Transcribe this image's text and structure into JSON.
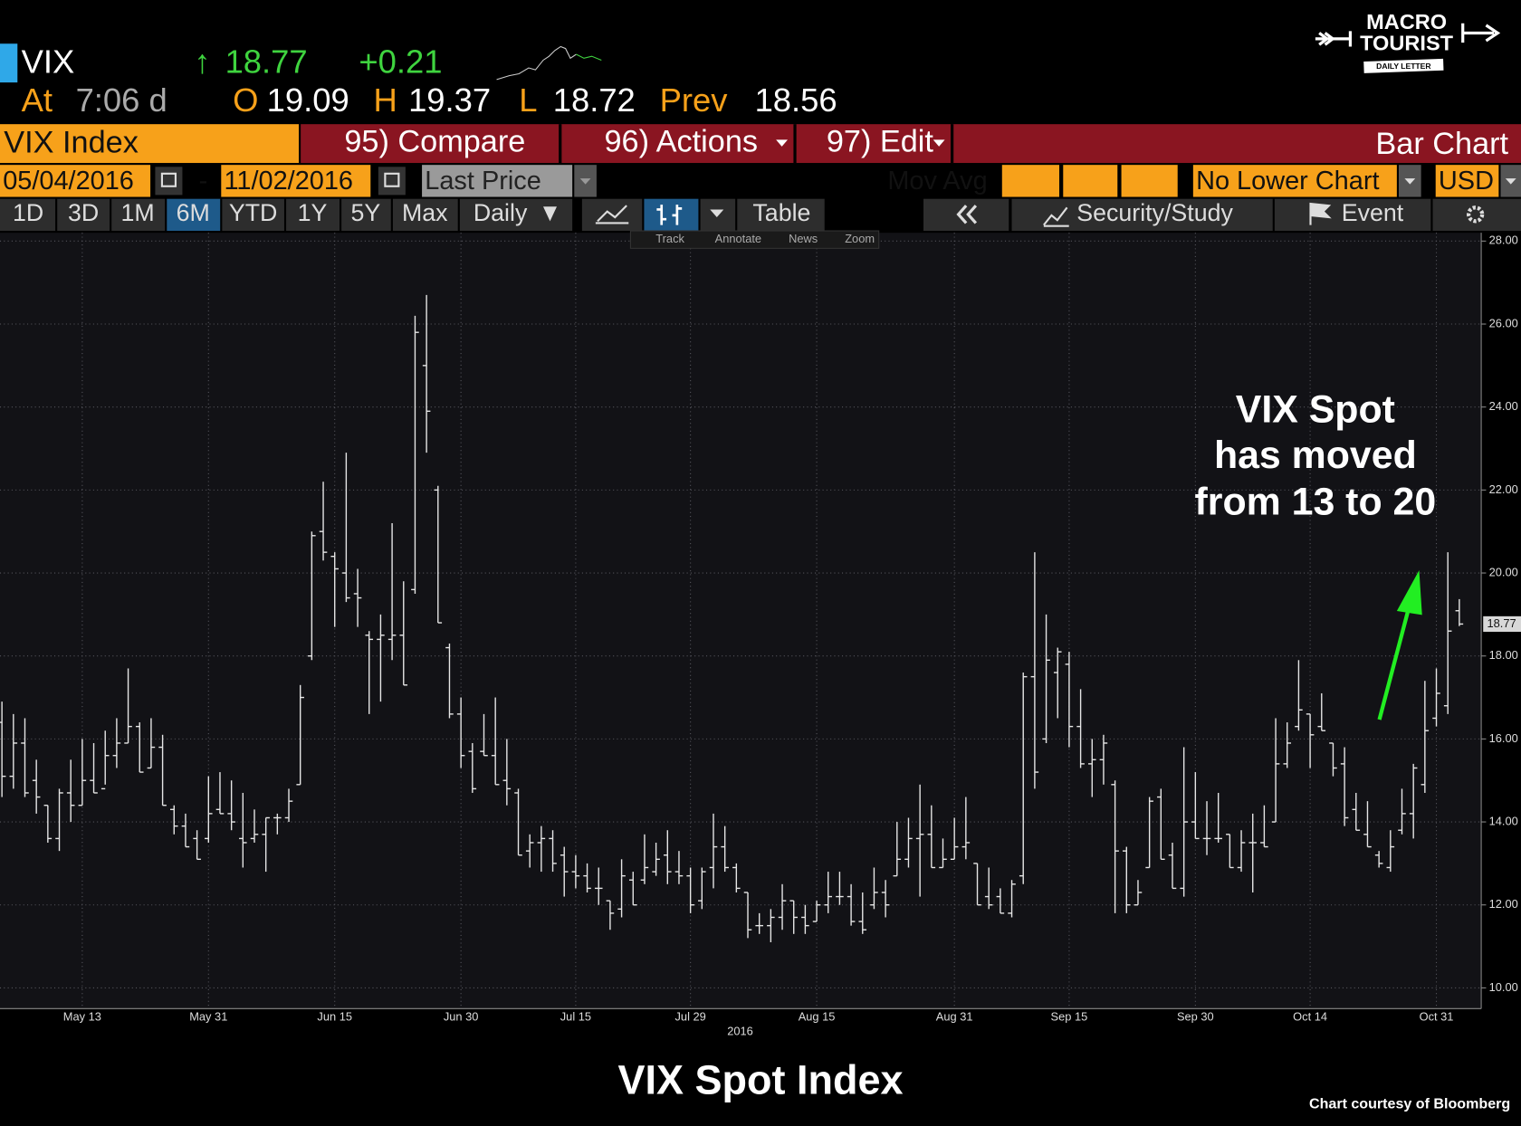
{
  "quote": {
    "ticker": "VIX",
    "arrow": "↑",
    "change": "+0.21",
    "time_label": "At",
    "time": "7:06 d",
    "open_label": "O",
    "high_label": "H",
    "low_label": "L",
    "prev_label": "Prev",
    "prev": 18.56
  },
  "logo": {
    "line1": "MACRO",
    "line2": "TOURIST",
    "line3": "DAILY LETTER"
  },
  "toolbar": {
    "security": "VIX Index",
    "compare": "95) Compare",
    "actions": "96) Actions",
    "edit": "97) Edit",
    "chart_type": "Bar Chart",
    "start_date": "05/04/2016",
    "date_sep": "-",
    "end_date": "11/02/2016",
    "field": "Last Price",
    "mov_avg": "Mov Avg",
    "lower_chart": "No Lower Chart",
    "currency": "USD",
    "periods": [
      "1D",
      "3D",
      "1M",
      "6M",
      "YTD",
      "1Y",
      "5Y",
      "Max"
    ],
    "frequency": "Daily",
    "table": "Table",
    "security_study": "Security/Study",
    "event": "Event",
    "tools": [
      "Track",
      "Annotate",
      "News",
      "Zoom"
    ]
  },
  "chart_data": {
    "type": "ohlc",
    "title": "VIX Spot Index",
    "annotation": [
      "VIX Spot",
      "has moved",
      "from 13 to 20"
    ],
    "xlabel": "2016",
    "credit": "Chart courtesy of Bloomberg",
    "color": "#e6e6e6",
    "grid": true,
    "categories": [
      null,
      null,
      null,
      null,
      null,
      null,
      null,
      "May 13",
      null,
      null,
      null,
      null,
      null,
      null,
      null,
      null,
      null,
      null,
      "May 31",
      null,
      null,
      null,
      null,
      null,
      null,
      null,
      null,
      null,
      null,
      "Jun 15",
      null,
      null,
      null,
      null,
      null,
      null,
      null,
      null,
      null,
      null,
      "Jun 30",
      null,
      null,
      null,
      null,
      null,
      null,
      null,
      null,
      null,
      "Jul 15",
      null,
      null,
      null,
      null,
      null,
      null,
      null,
      null,
      null,
      "Jul 29",
      null,
      null,
      null,
      null,
      null,
      null,
      null,
      null,
      null,
      null,
      "Aug 15",
      null,
      null,
      null,
      null,
      null,
      null,
      null,
      null,
      null,
      null,
      null,
      "Aug 31",
      null,
      null,
      null,
      null,
      null,
      null,
      null,
      null,
      null,
      "Sep 15",
      null,
      null,
      null,
      null,
      null,
      null,
      null,
      null,
      null,
      null,
      "Sep 30",
      null,
      null,
      null,
      null,
      null,
      null,
      null,
      null,
      null,
      "Oct 14",
      null,
      null,
      null,
      null,
      null,
      null,
      null,
      null,
      null,
      null,
      "Oct 31",
      null,
      null
    ],
    "open": [
      16.4,
      15.1,
      15.9,
      15.0,
      14.4,
      13.6,
      14.7,
      14.4,
      15.0,
      14.8,
      15.6,
      15.9,
      16.3,
      15.3,
      15.8,
      14.3,
      13.9,
      13.6,
      13.6,
      14.3,
      14.2,
      13.6,
      13.6,
      13.7,
      14.1,
      14.1,
      14.9,
      18.0,
      21.0,
      20.4,
      20.0,
      19.5,
      18.5,
      18.4,
      18.4,
      18.5,
      19.6,
      25.0,
      22.0,
      18.2,
      16.6,
      15.7,
      15.7,
      15.6,
      15.0,
      14.7,
      13.3,
      13.5,
      13.6,
      13.2,
      12.8,
      12.7,
      12.4,
      12.1,
      11.9,
      12.6,
      12.6,
      12.8,
      13.2,
      12.8,
      12.7,
      12.1,
      12.9,
      13.4,
      12.9,
      12.3,
      11.5,
      11.5,
      11.7,
      12.1,
      11.7,
      11.6,
      12.0,
      12.2,
      12.2,
      11.6,
      12.0,
      12.3,
      12.7,
      13.1,
      13.6,
      13.7,
      12.9,
      13.1,
      13.4,
      13.0,
      12.2,
      12.2,
      11.8,
      12.7,
      17.5,
      16.0,
      17.6,
      17.8,
      16.3,
      15.4,
      15.5,
      14.9,
      13.3,
      12.0,
      12.9,
      14.6,
      13.2,
      12.4,
      14.0,
      13.6,
      13.6,
      13.7,
      12.9,
      13.5,
      13.5,
      14.0,
      15.4,
      16.3,
      16.6,
      16.3,
      15.9,
      15.4,
      14.3,
      13.7,
      13.2,
      12.9,
      13.8,
      14.2,
      14.9,
      16.5,
      16.8,
      19.09
    ],
    "high": [
      16.9,
      16.6,
      16.5,
      15.5,
      14.4,
      14.8,
      15.5,
      16.0,
      15.9,
      16.2,
      16.5,
      17.7,
      16.4,
      16.5,
      16.1,
      14.4,
      14.2,
      13.8,
      15.1,
      15.2,
      15.0,
      14.7,
      14.3,
      14.1,
      14.2,
      14.8,
      17.3,
      21.0,
      22.2,
      20.5,
      22.9,
      20.1,
      18.6,
      19.0,
      21.2,
      19.8,
      26.2,
      26.7,
      22.1,
      18.3,
      17.0,
      15.9,
      16.6,
      17.0,
      16.0,
      14.8,
      13.7,
      13.9,
      13.8,
      13.4,
      13.2,
      13.0,
      12.9,
      12.1,
      13.1,
      12.8,
      13.7,
      13.5,
      13.8,
      13.3,
      12.9,
      12.9,
      14.2,
      13.9,
      13.0,
      12.3,
      11.8,
      11.9,
      12.5,
      12.1,
      12.0,
      12.1,
      12.8,
      12.8,
      12.5,
      12.3,
      12.9,
      12.6,
      14.0,
      14.1,
      14.9,
      14.4,
      13.6,
      14.1,
      14.6,
      13.0,
      12.9,
      12.4,
      12.6,
      17.6,
      20.5,
      19.0,
      18.2,
      18.1,
      17.2,
      16.0,
      16.1,
      15.0,
      13.4,
      12.6,
      14.6,
      14.8,
      13.5,
      15.8,
      15.2,
      14.5,
      14.7,
      13.7,
      13.8,
      14.2,
      14.4,
      16.5,
      16.4,
      17.9,
      16.6,
      17.1,
      15.9,
      15.8,
      14.7,
      14.5,
      13.3,
      13.8,
      14.8,
      15.4,
      17.4,
      17.7,
      20.5,
      19.37
    ],
    "low": [
      14.6,
      14.8,
      14.6,
      14.2,
      13.5,
      13.3,
      14.0,
      14.4,
      14.7,
      14.9,
      15.3,
      15.9,
      15.2,
      15.3,
      14.4,
      13.7,
      13.4,
      13.1,
      13.5,
      14.2,
      13.8,
      12.9,
      13.5,
      12.8,
      13.7,
      14.0,
      14.9,
      17.9,
      20.3,
      18.7,
      19.3,
      18.7,
      16.6,
      16.9,
      17.9,
      17.3,
      19.5,
      22.9,
      18.8,
      16.5,
      15.3,
      14.7,
      15.6,
      14.9,
      14.4,
      13.2,
      12.9,
      12.8,
      12.8,
      12.2,
      12.4,
      12.3,
      12.0,
      11.4,
      11.7,
      12.0,
      12.5,
      12.7,
      12.5,
      12.5,
      11.8,
      11.9,
      12.4,
      12.8,
      12.3,
      11.2,
      11.3,
      11.1,
      11.4,
      11.3,
      11.3,
      11.6,
      11.8,
      12.0,
      11.5,
      11.3,
      11.9,
      11.7,
      12.7,
      12.9,
      12.2,
      12.9,
      12.9,
      13.1,
      13.1,
      12.0,
      11.9,
      11.8,
      11.7,
      12.5,
      14.8,
      15.9,
      16.5,
      15.8,
      15.3,
      14.6,
      14.9,
      11.8,
      11.8,
      12.0,
      12.9,
      13.1,
      12.4,
      12.2,
      13.6,
      13.2,
      13.5,
      12.9,
      12.8,
      12.3,
      13.4,
      14.0,
      15.3,
      16.2,
      15.3,
      16.2,
      15.1,
      13.9,
      13.8,
      13.4,
      12.9,
      12.8,
      13.7,
      13.6,
      14.7,
      16.3,
      16.6,
      18.72
    ],
    "close": [
      15.1,
      15.9,
      14.7,
      14.6,
      13.6,
      14.7,
      14.4,
      15.0,
      14.7,
      15.6,
      15.9,
      16.3,
      15.2,
      15.8,
      14.4,
      13.9,
      13.4,
      13.1,
      14.2,
      14.2,
      14.0,
      13.5,
      13.7,
      14.1,
      14.1,
      14.5,
      17.0,
      20.9,
      20.5,
      20.1,
      19.4,
      19.4,
      18.4,
      18.5,
      18.5,
      17.3,
      25.8,
      23.9,
      18.8,
      16.6,
      15.6,
      14.8,
      15.6,
      14.9,
      14.8,
      13.2,
      13.5,
      13.6,
      13.0,
      12.8,
      12.7,
      12.4,
      12.4,
      11.8,
      12.7,
      12.0,
      12.9,
      13.1,
      12.8,
      12.7,
      12.0,
      12.8,
      13.4,
      12.9,
      12.4,
      11.4,
      11.5,
      11.7,
      12.1,
      11.7,
      11.5,
      12.0,
      12.2,
      12.2,
      11.6,
      11.4,
      12.3,
      12.0,
      13.1,
      13.6,
      13.7,
      12.9,
      13.1,
      13.4,
      13.5,
      12.0,
      12.0,
      11.8,
      12.5,
      17.5,
      15.2,
      17.9,
      18.1,
      16.3,
      15.4,
      15.5,
      15.9,
      13.3,
      12.0,
      12.3,
      14.5,
      13.1,
      12.4,
      14.0,
      13.6,
      13.6,
      13.6,
      12.9,
      13.5,
      13.5,
      13.4,
      15.4,
      15.9,
      16.7,
      16.1,
      16.2,
      15.3,
      14.1,
      13.8,
      13.4,
      13.0,
      13.4,
      14.2,
      15.3,
      16.2,
      17.1,
      18.6,
      18.77
    ],
    "ylim": [
      9.5,
      28.2
    ],
    "yticks": [
      {
        "value": 10,
        "label": "10.00"
      },
      {
        "value": 12,
        "label": "12.00"
      },
      {
        "value": 14,
        "label": "14.00"
      },
      {
        "value": 16,
        "label": "16.00"
      },
      {
        "value": 18,
        "label": "18.00"
      },
      {
        "value": 20,
        "label": "20.00"
      },
      {
        "value": 22,
        "label": "22.00"
      },
      {
        "value": 24,
        "label": "24.00"
      },
      {
        "value": 26,
        "label": "26.00"
      },
      {
        "value": 28,
        "label": "28.00"
      }
    ]
  }
}
